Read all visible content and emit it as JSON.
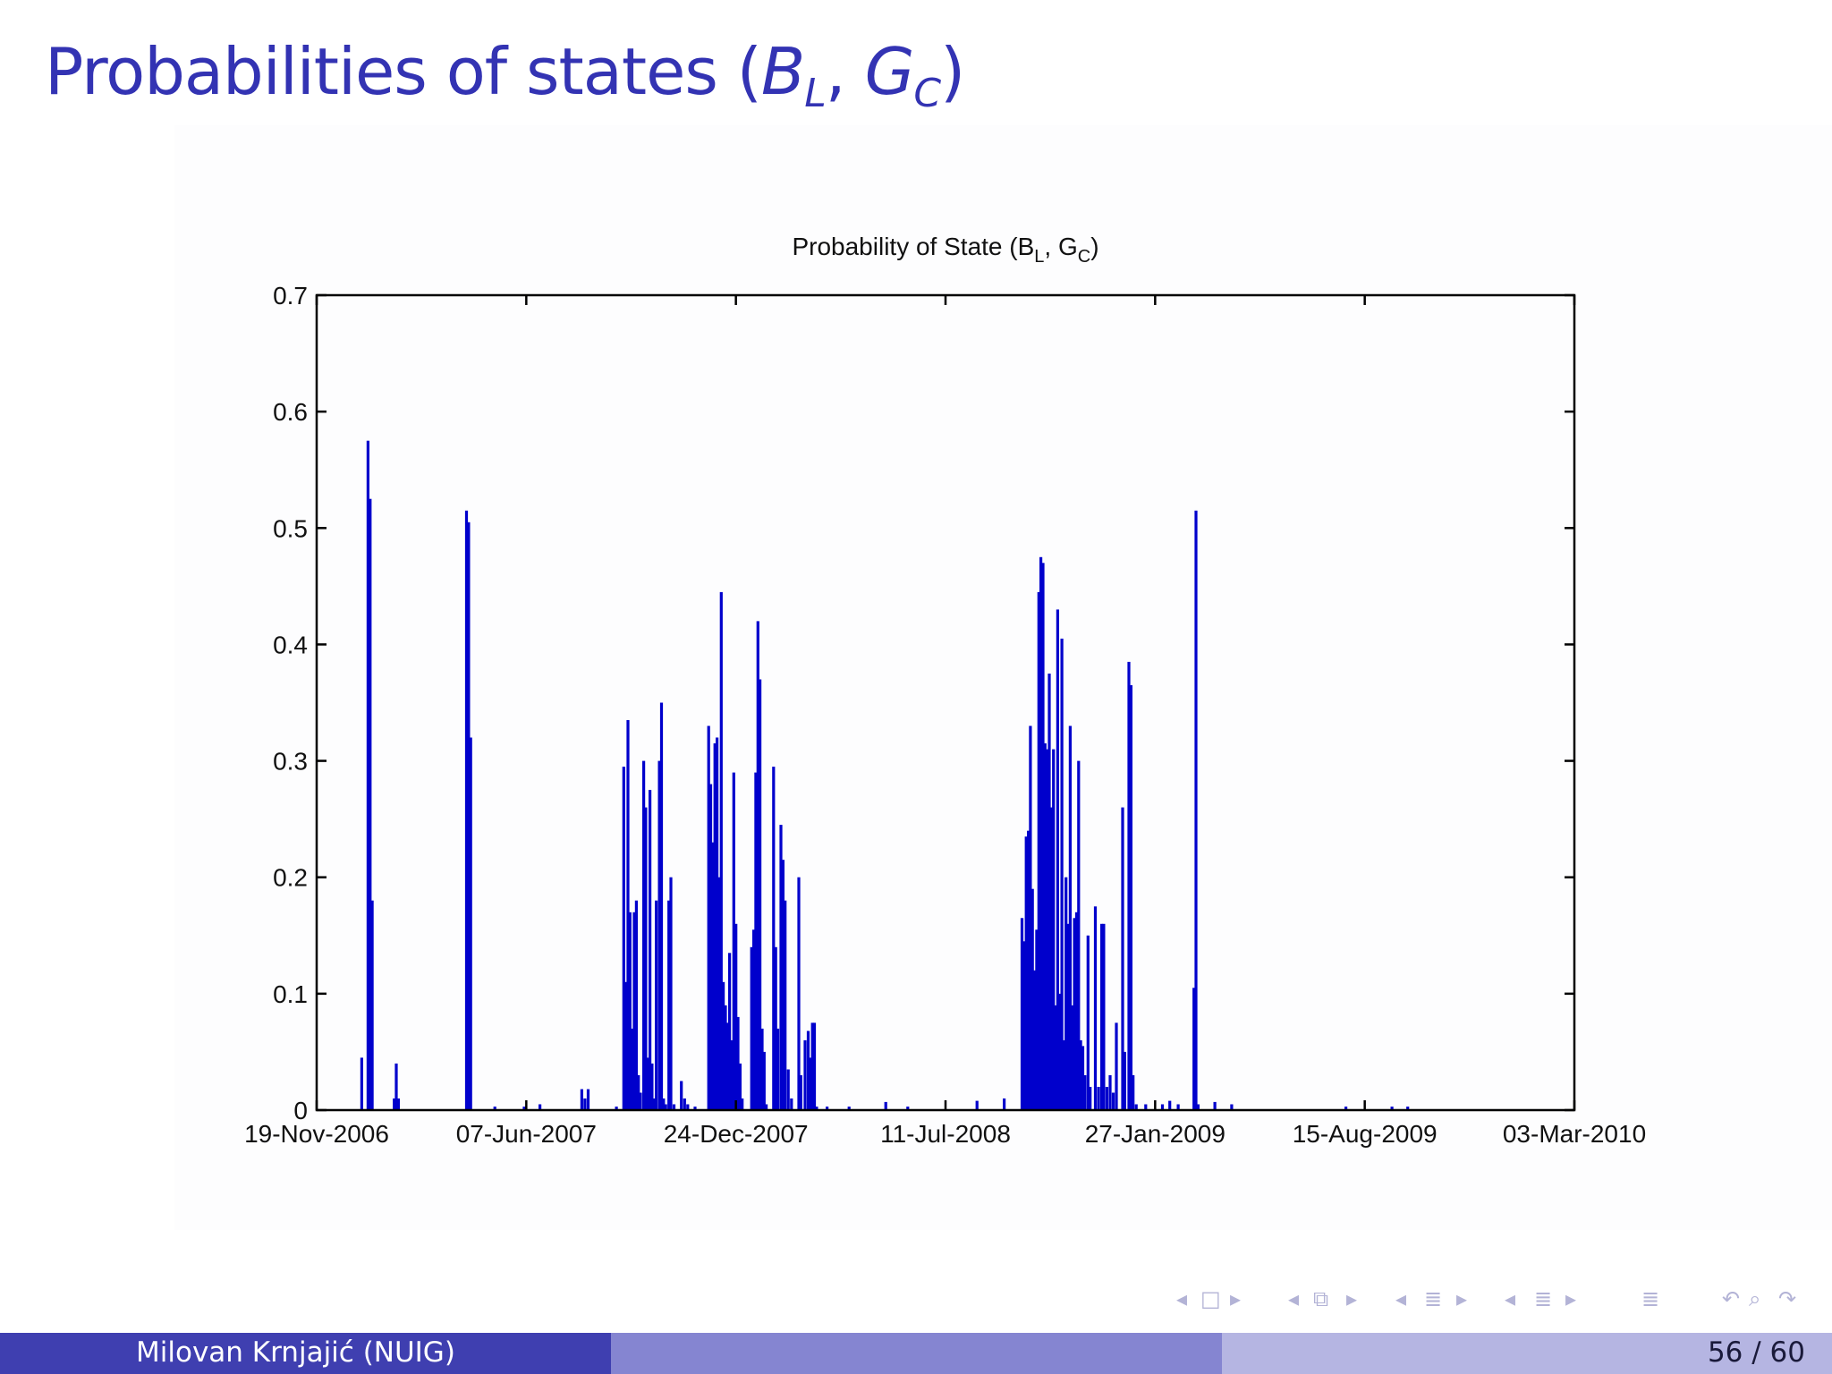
{
  "slide": {
    "title_prefix": "Probabilities of states (",
    "title_B": "B",
    "title_B_sub": "L",
    "title_sep": ", ",
    "title_G": "G",
    "title_G_sub": "C",
    "title_suffix": ")"
  },
  "footer": {
    "author": "Milovan Krnjajić  (NUIG)",
    "page": "56 / 60"
  },
  "nav_icons": [
    "nav-left-icon",
    "frame-icon",
    "nav-right-icon",
    "nav-left-icon",
    "section-icon",
    "nav-right-icon",
    "nav-left-icon",
    "subsection-icon",
    "nav-right-icon",
    "nav-left-icon",
    "list-icon",
    "nav-right-icon",
    "list-icon",
    "undo-icon",
    "search-icon",
    "redo-icon"
  ],
  "colors": {
    "title": "#3333b3",
    "series": "#0000cc",
    "footer_dark": "#3f3fb0",
    "footer_mid": "#8585d1",
    "footer_light": "#b5b5e2"
  },
  "chart_data": {
    "type": "bar",
    "title": "Probability of State (B",
    "title_sub1": "L",
    "title_mid": ", G",
    "title_sub2": "C",
    "title_end": ")",
    "xlabel": "",
    "ylabel": "",
    "ylim": [
      0,
      0.7
    ],
    "yticks": [
      0,
      0.1,
      0.2,
      0.3,
      0.4,
      0.5,
      0.6,
      0.7
    ],
    "ytick_labels": [
      "0",
      "0.1",
      "0.2",
      "0.3",
      "0.4",
      "0.5",
      "0.6",
      "0.7"
    ],
    "xlim": [
      "2006-11-19",
      "2010-03-03"
    ],
    "xticks": [
      "2006-11-19",
      "2007-06-07",
      "2007-12-24",
      "2008-07-11",
      "2009-01-27",
      "2009-08-15",
      "2010-03-03"
    ],
    "xtick_labels": [
      "19-Nov-2006",
      "07-Jun-2007",
      "24-Dec-2007",
      "11-Jul-2008",
      "27-Jan-2009",
      "15-Aug-2009",
      "03-Mar-2010"
    ],
    "grid": false,
    "series": [
      {
        "color": "#0000cc",
        "points": [
          [
            "2007-01-01",
            0.045
          ],
          [
            "2007-01-04",
            0.0
          ],
          [
            "2007-01-07",
            0.575
          ],
          [
            "2007-01-09",
            0.525
          ],
          [
            "2007-01-11",
            0.18
          ],
          [
            "2007-01-13",
            0.0
          ],
          [
            "2007-02-01",
            0.01
          ],
          [
            "2007-02-03",
            0.04
          ],
          [
            "2007-02-05",
            0.01
          ],
          [
            "2007-04-11",
            0.515
          ],
          [
            "2007-04-13",
            0.505
          ],
          [
            "2007-04-15",
            0.32
          ],
          [
            "2007-04-17",
            0.0
          ],
          [
            "2007-05-08",
            0.003
          ],
          [
            "2007-06-05",
            0.003
          ],
          [
            "2007-06-20",
            0.005
          ],
          [
            "2007-07-30",
            0.018
          ],
          [
            "2007-08-02",
            0.01
          ],
          [
            "2007-08-05",
            0.018
          ],
          [
            "2007-09-01",
            0.003
          ],
          [
            "2007-09-08",
            0.295
          ],
          [
            "2007-09-10",
            0.11
          ],
          [
            "2007-09-12",
            0.335
          ],
          [
            "2007-09-14",
            0.17
          ],
          [
            "2007-09-16",
            0.07
          ],
          [
            "2007-09-18",
            0.17
          ],
          [
            "2007-09-20",
            0.18
          ],
          [
            "2007-09-22",
            0.03
          ],
          [
            "2007-09-24",
            0.015
          ],
          [
            "2007-09-27",
            0.3
          ],
          [
            "2007-09-29",
            0.26
          ],
          [
            "2007-10-01",
            0.045
          ],
          [
            "2007-10-03",
            0.275
          ],
          [
            "2007-10-05",
            0.04
          ],
          [
            "2007-10-07",
            0.01
          ],
          [
            "2007-10-09",
            0.18
          ],
          [
            "2007-10-12",
            0.3
          ],
          [
            "2007-10-14",
            0.35
          ],
          [
            "2007-10-16",
            0.01
          ],
          [
            "2007-10-18",
            0.005
          ],
          [
            "2007-10-21",
            0.18
          ],
          [
            "2007-10-23",
            0.2
          ],
          [
            "2007-10-26",
            0.005
          ],
          [
            "2007-11-02",
            0.025
          ],
          [
            "2007-11-05",
            0.01
          ],
          [
            "2007-11-08",
            0.005
          ],
          [
            "2007-11-15",
            0.003
          ],
          [
            "2007-11-28",
            0.33
          ],
          [
            "2007-11-30",
            0.28
          ],
          [
            "2007-12-02",
            0.23
          ],
          [
            "2007-12-04",
            0.315
          ],
          [
            "2007-12-06",
            0.32
          ],
          [
            "2007-12-08",
            0.2
          ],
          [
            "2007-12-10",
            0.445
          ],
          [
            "2007-12-12",
            0.11
          ],
          [
            "2007-12-14",
            0.09
          ],
          [
            "2007-12-16",
            0.075
          ],
          [
            "2007-12-18",
            0.135
          ],
          [
            "2007-12-20",
            0.06
          ],
          [
            "2007-12-22",
            0.29
          ],
          [
            "2007-12-24",
            0.16
          ],
          [
            "2007-12-26",
            0.08
          ],
          [
            "2007-12-28",
            0.04
          ],
          [
            "2007-12-30",
            0.01
          ],
          [
            "2008-01-08",
            0.14
          ],
          [
            "2008-01-10",
            0.155
          ],
          [
            "2008-01-12",
            0.29
          ],
          [
            "2008-01-14",
            0.42
          ],
          [
            "2008-01-16",
            0.37
          ],
          [
            "2008-01-18",
            0.07
          ],
          [
            "2008-01-20",
            0.05
          ],
          [
            "2008-01-22",
            0.005
          ],
          [
            "2008-01-29",
            0.295
          ],
          [
            "2008-01-31",
            0.14
          ],
          [
            "2008-02-02",
            0.07
          ],
          [
            "2008-02-05",
            0.245
          ],
          [
            "2008-02-07",
            0.215
          ],
          [
            "2008-02-09",
            0.18
          ],
          [
            "2008-02-12",
            0.035
          ],
          [
            "2008-02-15",
            0.01
          ],
          [
            "2008-02-22",
            0.2
          ],
          [
            "2008-02-24",
            0.03
          ],
          [
            "2008-02-28",
            0.06
          ],
          [
            "2008-03-02",
            0.068
          ],
          [
            "2008-03-04",
            0.045
          ],
          [
            "2008-03-06",
            0.075
          ],
          [
            "2008-03-08",
            0.075
          ],
          [
            "2008-03-10",
            0.003
          ],
          [
            "2008-03-20",
            0.003
          ],
          [
            "2008-04-10",
            0.003
          ],
          [
            "2008-05-15",
            0.007
          ],
          [
            "2008-06-05",
            0.003
          ],
          [
            "2008-08-10",
            0.008
          ],
          [
            "2008-09-05",
            0.01
          ],
          [
            "2008-09-22",
            0.165
          ],
          [
            "2008-09-24",
            0.145
          ],
          [
            "2008-09-26",
            0.235
          ],
          [
            "2008-09-28",
            0.24
          ],
          [
            "2008-09-30",
            0.33
          ],
          [
            "2008-10-02",
            0.19
          ],
          [
            "2008-10-04",
            0.12
          ],
          [
            "2008-10-06",
            0.155
          ],
          [
            "2008-10-08",
            0.445
          ],
          [
            "2008-10-10",
            0.475
          ],
          [
            "2008-10-12",
            0.47
          ],
          [
            "2008-10-14",
            0.315
          ],
          [
            "2008-10-16",
            0.31
          ],
          [
            "2008-10-18",
            0.375
          ],
          [
            "2008-10-20",
            0.26
          ],
          [
            "2008-10-22",
            0.31
          ],
          [
            "2008-10-24",
            0.09
          ],
          [
            "2008-10-26",
            0.43
          ],
          [
            "2008-10-28",
            0.1
          ],
          [
            "2008-10-30",
            0.405
          ],
          [
            "2008-11-01",
            0.06
          ],
          [
            "2008-11-03",
            0.2
          ],
          [
            "2008-11-05",
            0.16
          ],
          [
            "2008-11-07",
            0.33
          ],
          [
            "2008-11-09",
            0.09
          ],
          [
            "2008-11-11",
            0.165
          ],
          [
            "2008-11-13",
            0.17
          ],
          [
            "2008-11-15",
            0.3
          ],
          [
            "2008-11-17",
            0.06
          ],
          [
            "2008-11-19",
            0.055
          ],
          [
            "2008-11-21",
            0.03
          ],
          [
            "2008-11-24",
            0.15
          ],
          [
            "2008-11-26",
            0.02
          ],
          [
            "2008-12-01",
            0.175
          ],
          [
            "2008-12-04",
            0.02
          ],
          [
            "2008-12-07",
            0.16
          ],
          [
            "2008-12-09",
            0.16
          ],
          [
            "2008-12-12",
            0.02
          ],
          [
            "2008-12-15",
            0.03
          ],
          [
            "2008-12-18",
            0.015
          ],
          [
            "2008-12-21",
            0.075
          ],
          [
            "2008-12-27",
            0.26
          ],
          [
            "2008-12-29",
            0.05
          ],
          [
            "2009-01-02",
            0.385
          ],
          [
            "2009-01-04",
            0.365
          ],
          [
            "2009-01-06",
            0.03
          ],
          [
            "2009-01-09",
            0.005
          ],
          [
            "2009-01-18",
            0.005
          ],
          [
            "2009-02-03",
            0.005
          ],
          [
            "2009-02-10",
            0.008
          ],
          [
            "2009-02-18",
            0.005
          ],
          [
            "2009-03-05",
            0.105
          ],
          [
            "2009-03-07",
            0.515
          ],
          [
            "2009-03-09",
            0.005
          ],
          [
            "2009-03-25",
            0.007
          ],
          [
            "2009-04-10",
            0.005
          ],
          [
            "2009-07-28",
            0.003
          ],
          [
            "2009-09-10",
            0.003
          ],
          [
            "2009-09-25",
            0.003
          ]
        ]
      }
    ]
  }
}
